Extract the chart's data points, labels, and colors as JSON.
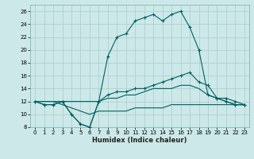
{
  "xlabel": "Humidex (Indice chaleur)",
  "bg_color": "#cce8e8",
  "grid_color": "#aacccc",
  "line_color": "#006060",
  "xlim": [
    -0.5,
    23.5
  ],
  "ylim": [
    8,
    27
  ],
  "xticks": [
    0,
    1,
    2,
    3,
    4,
    5,
    6,
    7,
    8,
    9,
    10,
    11,
    12,
    13,
    14,
    15,
    16,
    17,
    18,
    19,
    20,
    21,
    22,
    23
  ],
  "yticks": [
    8,
    10,
    12,
    14,
    16,
    18,
    20,
    22,
    24,
    26
  ],
  "curve1_x": [
    0,
    1,
    2,
    3,
    4,
    5,
    6,
    7,
    8,
    9,
    10,
    11,
    12,
    13,
    14,
    15,
    16,
    17,
    18,
    19,
    20,
    21,
    22,
    23
  ],
  "curve1_y": [
    12,
    11.5,
    11.5,
    12,
    10,
    8.5,
    8,
    12,
    19,
    22,
    22.5,
    24.5,
    25,
    25.5,
    24.5,
    25.5,
    26,
    23.5,
    20,
    13,
    12.5,
    12.5,
    12,
    11.5
  ],
  "curve2_x": [
    0,
    1,
    2,
    3,
    4,
    5,
    6,
    7,
    8,
    9,
    10,
    11,
    12,
    13,
    14,
    15,
    16,
    17,
    18,
    19,
    20,
    21,
    22,
    23
  ],
  "curve2_y": [
    12,
    11.5,
    11.5,
    12,
    10,
    8.5,
    8,
    12,
    13,
    13.5,
    13.5,
    14,
    14,
    14.5,
    15,
    15.5,
    16,
    16.5,
    15,
    14.5,
    12.5,
    12,
    11.5,
    11.5
  ],
  "curve3_x": [
    0,
    1,
    2,
    3,
    4,
    5,
    6,
    7,
    8,
    9,
    10,
    11,
    12,
    13,
    14,
    15,
    16,
    17,
    18,
    19,
    20,
    21,
    22,
    23
  ],
  "curve3_y": [
    12,
    12,
    12,
    12,
    12,
    12,
    12,
    12,
    12.5,
    12.5,
    13,
    13,
    13.5,
    14,
    14,
    14,
    14.5,
    14.5,
    14,
    13,
    12.5,
    12,
    11.5,
    11.5
  ],
  "curve4_x": [
    0,
    1,
    2,
    3,
    4,
    5,
    6,
    7,
    8,
    9,
    10,
    11,
    12,
    13,
    14,
    15,
    16,
    17,
    18,
    19,
    20,
    21,
    22,
    23
  ],
  "curve4_y": [
    12,
    12,
    12,
    11.5,
    11,
    10.5,
    10,
    10.5,
    10.5,
    10.5,
    10.5,
    11,
    11,
    11,
    11,
    11.5,
    11.5,
    11.5,
    11.5,
    11.5,
    11.5,
    11.5,
    11.5,
    11.5
  ],
  "xlabel_fontsize": 6,
  "tick_fontsize": 5
}
